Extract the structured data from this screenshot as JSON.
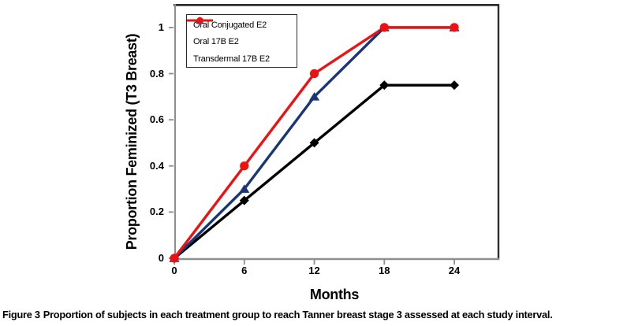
{
  "figure": {
    "caption_prefix": "Figure 3",
    "caption_text": "Proportion of subjects in each treatment group to reach Tanner breast stage 3 assessed at each study interval."
  },
  "chart_data": {
    "type": "line",
    "title": "",
    "xlabel": "Months",
    "ylabel": "Proportion Feminized (T3 Breast)",
    "x": [
      0,
      6,
      12,
      18,
      24
    ],
    "x_tick_labels": [
      "0",
      "6",
      "12",
      "18",
      "24"
    ],
    "y_ticks": [
      0,
      0.2,
      0.4,
      0.6,
      0.8,
      1
    ],
    "y_tick_labels": [
      "0",
      "0.2",
      "0.4",
      "0.6",
      "0.8",
      "1"
    ],
    "xlim": [
      0,
      27.85
    ],
    "ylim": [
      -0.007,
      1.102
    ],
    "grid": false,
    "legend_position": "top-left",
    "background": "#ffffff",
    "axis_color": "#8f8f8f",
    "frame_color": "#2e2e2e",
    "series": [
      {
        "name": "Oral Conjugated E2",
        "color": "#000000",
        "marker": "diamond",
        "values": [
          0,
          0.25,
          0.5,
          0.75,
          0.75
        ]
      },
      {
        "name": "Oral 17B E2",
        "color": "#1a3775",
        "marker": "triangle",
        "values": [
          0,
          0.3,
          0.7,
          1,
          1
        ]
      },
      {
        "name": "Transdermal 17B E2",
        "color": "#ee1111",
        "marker": "circle",
        "values": [
          0,
          0.4,
          0.8,
          1,
          1
        ]
      }
    ]
  }
}
